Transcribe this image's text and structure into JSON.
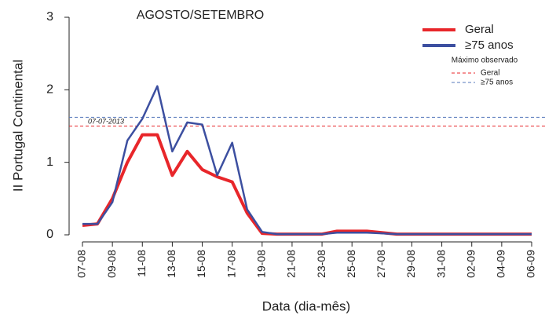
{
  "chart_data": {
    "type": "line",
    "title": "AGOSTO/SETEMBRO",
    "x_label": "Data (dia-mês)",
    "y_label": "II Portugal Continental",
    "categories": [
      "07-08",
      null,
      "09-08",
      null,
      "11-08",
      null,
      "13-08",
      null,
      "15-08",
      null,
      "17-08",
      null,
      "19-08",
      null,
      "21-08",
      null,
      "23-08",
      null,
      "25-08",
      null,
      "27-08",
      null,
      "29-08",
      null,
      "31-08",
      null,
      "02-09",
      null,
      "04-09",
      null,
      "06-09"
    ],
    "series": [
      {
        "name": "Geral",
        "color": "#e8262a",
        "values": [
          0.13,
          0.15,
          0.5,
          1.0,
          1.38,
          1.38,
          0.82,
          1.15,
          0.9,
          0.8,
          0.73,
          0.3,
          0.02,
          0.01,
          0.01,
          0.01,
          0.01,
          0.05,
          0.05,
          0.05,
          0.03,
          0.01,
          0.01,
          0.01,
          0.01,
          0.01,
          0.01,
          0.01,
          0.01,
          0.01,
          0.01
        ]
      },
      {
        "name": "≥75 anos",
        "color": "#3c4fa0",
        "values": [
          0.15,
          0.15,
          0.45,
          1.3,
          1.6,
          2.05,
          1.15,
          1.55,
          1.52,
          0.82,
          1.27,
          0.35,
          0.04,
          0.01,
          0.01,
          0.01,
          0.01,
          0.03,
          0.03,
          0.03,
          0.02,
          0.01,
          0.01,
          0.01,
          0.01,
          0.01,
          0.01,
          0.01,
          0.01,
          0.01,
          0.01
        ]
      }
    ],
    "reference_title": "Máximo observado",
    "reference_lines": [
      {
        "name": "Geral",
        "color": "#e8262a",
        "value": 1.5
      },
      {
        "name": "≥75 anos",
        "color": "#5577bb",
        "value": 1.62
      }
    ],
    "annotation": "07-07-2013",
    "ylim": [
      0,
      3
    ],
    "yticks": [
      0,
      1,
      2,
      3
    ],
    "legend": "top-right"
  }
}
